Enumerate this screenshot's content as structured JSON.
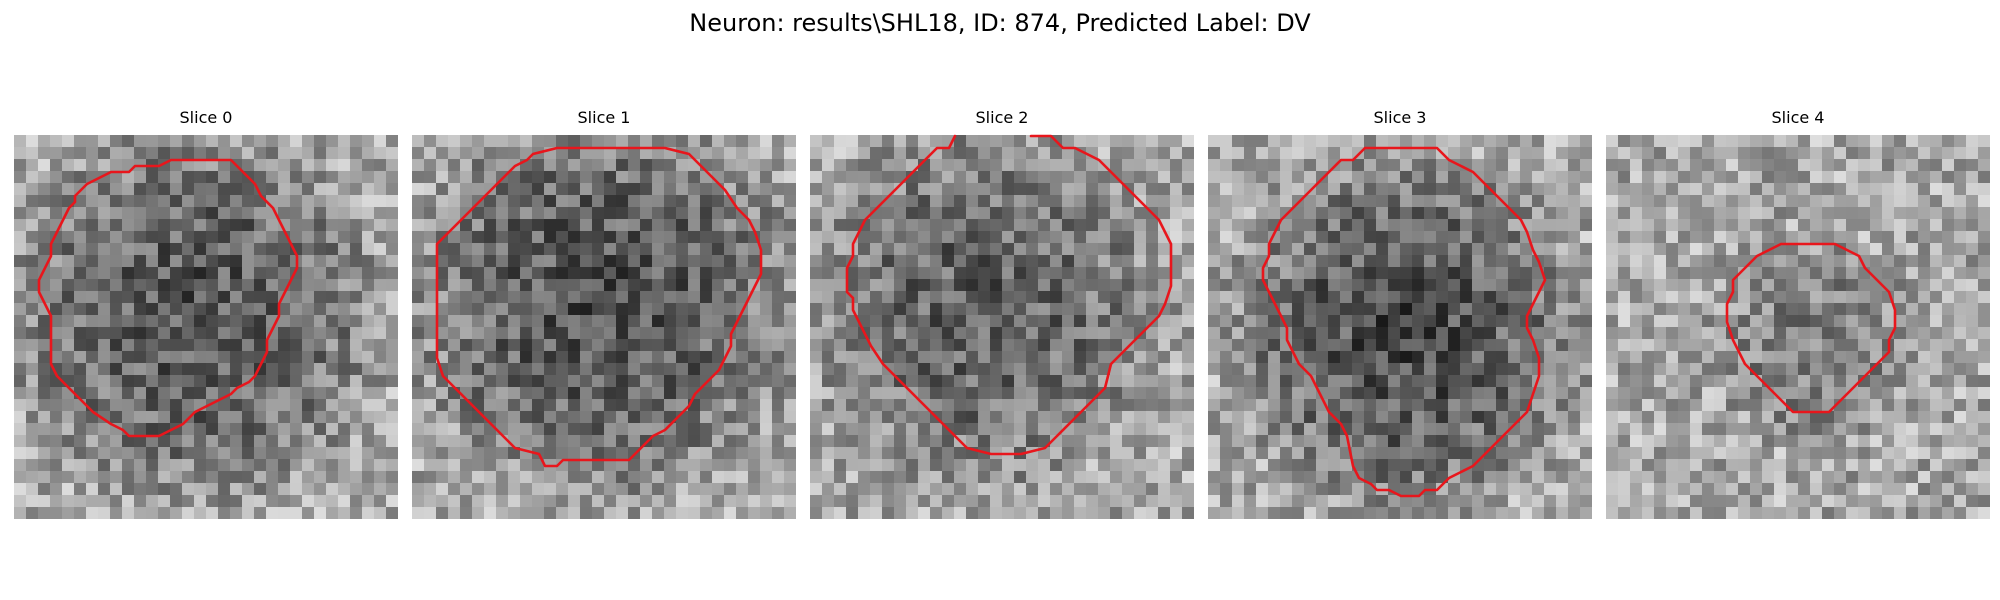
{
  "figure": {
    "title": "Neuron: results\\SHL18, ID: 874, Predicted Label: DV"
  },
  "colors": {
    "contour": "#e8161c",
    "background": "#ffffff"
  },
  "image_grid": {
    "cells": 32,
    "colormap": "gray"
  },
  "panels": [
    {
      "title": "Slice 0"
    },
    {
      "title": "Slice 1"
    },
    {
      "title": "Slice 2"
    },
    {
      "title": "Slice 3"
    },
    {
      "title": "Slice 4"
    }
  ]
}
